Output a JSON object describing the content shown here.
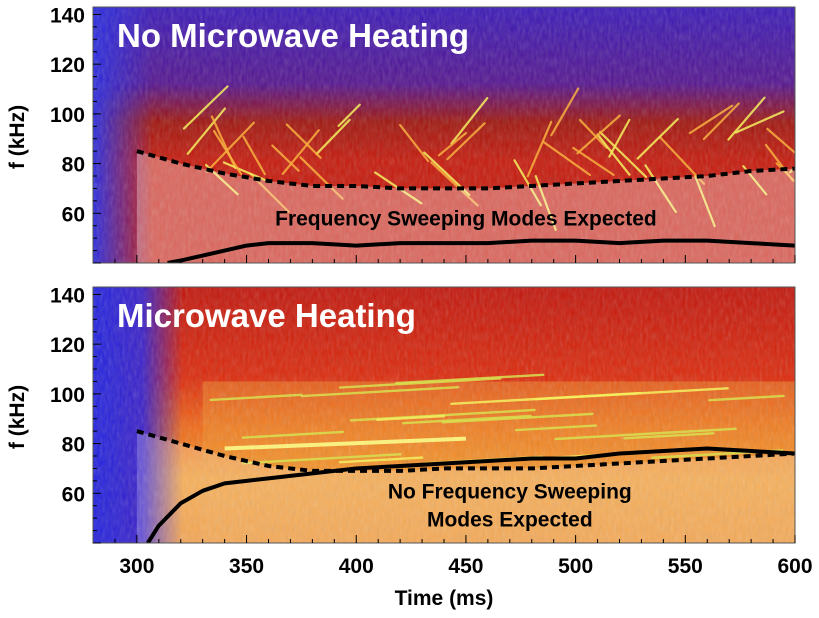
{
  "chart_data": [
    {
      "type": "heatmap",
      "title": "No Microwave Heating",
      "xlabel": "Time (ms)",
      "ylabel": "f (kHz)",
      "xlim": [
        280,
        600
      ],
      "ylim": [
        40,
        143
      ],
      "x_ticks": [
        300,
        350,
        400,
        450,
        500,
        550,
        600
      ],
      "y_ticks": [
        60,
        80,
        100,
        120,
        140
      ],
      "annotation": "Frequency Sweeping Modes Expected",
      "colors": {
        "low": "#2a1fd0",
        "mid": "#c8180a",
        "high": "#f0f040"
      },
      "series": [
        {
          "name": "upper bound (dashed)",
          "style": "dashed",
          "x": [
            300,
            320,
            340,
            360,
            380,
            400,
            420,
            440,
            460,
            480,
            500,
            520,
            540,
            560,
            580,
            600
          ],
          "y": [
            85,
            80,
            76,
            73,
            71,
            71,
            70,
            70,
            70,
            71,
            72,
            73,
            74,
            75,
            77,
            78
          ]
        },
        {
          "name": "lower bound (solid)",
          "style": "solid",
          "x": [
            314,
            320,
            330,
            340,
            350,
            360,
            380,
            400,
            420,
            440,
            460,
            480,
            500,
            520,
            540,
            560,
            580,
            600
          ],
          "y": [
            40,
            41,
            43,
            45,
            47,
            48,
            48,
            47,
            48,
            48,
            48,
            49,
            49,
            48,
            49,
            49,
            48,
            47
          ]
        }
      ]
    },
    {
      "type": "heatmap",
      "title": "Microwave Heating",
      "xlabel": "Time (ms)",
      "ylabel": "f (kHz)",
      "xlim": [
        280,
        600
      ],
      "ylim": [
        40,
        143
      ],
      "x_ticks": [
        300,
        350,
        400,
        450,
        500,
        550,
        600
      ],
      "y_ticks": [
        60,
        80,
        100,
        120,
        140
      ],
      "annotation_lines": [
        "No Frequency Sweeping",
        "Modes Expected"
      ],
      "colors": {
        "low": "#2a1fd0",
        "mid": "#d8200a",
        "high": "#f0f040"
      },
      "series": [
        {
          "name": "upper bound (dashed)",
          "style": "dashed",
          "x": [
            300,
            320,
            340,
            360,
            380,
            400,
            420,
            440,
            460,
            480,
            500,
            520,
            540,
            560,
            580,
            600
          ],
          "y": [
            85,
            80,
            75,
            71,
            69,
            69,
            69,
            70,
            70,
            70,
            71,
            72,
            73,
            74,
            75,
            76
          ]
        },
        {
          "name": "lower bound (solid)",
          "style": "solid",
          "x": [
            305,
            310,
            320,
            330,
            340,
            350,
            360,
            380,
            400,
            420,
            440,
            460,
            480,
            500,
            520,
            540,
            560,
            580,
            600
          ],
          "y": [
            40,
            47,
            56,
            61,
            64,
            65,
            66,
            68,
            70,
            71,
            72,
            73,
            74,
            74,
            76,
            77,
            78,
            77,
            76
          ]
        }
      ]
    }
  ]
}
